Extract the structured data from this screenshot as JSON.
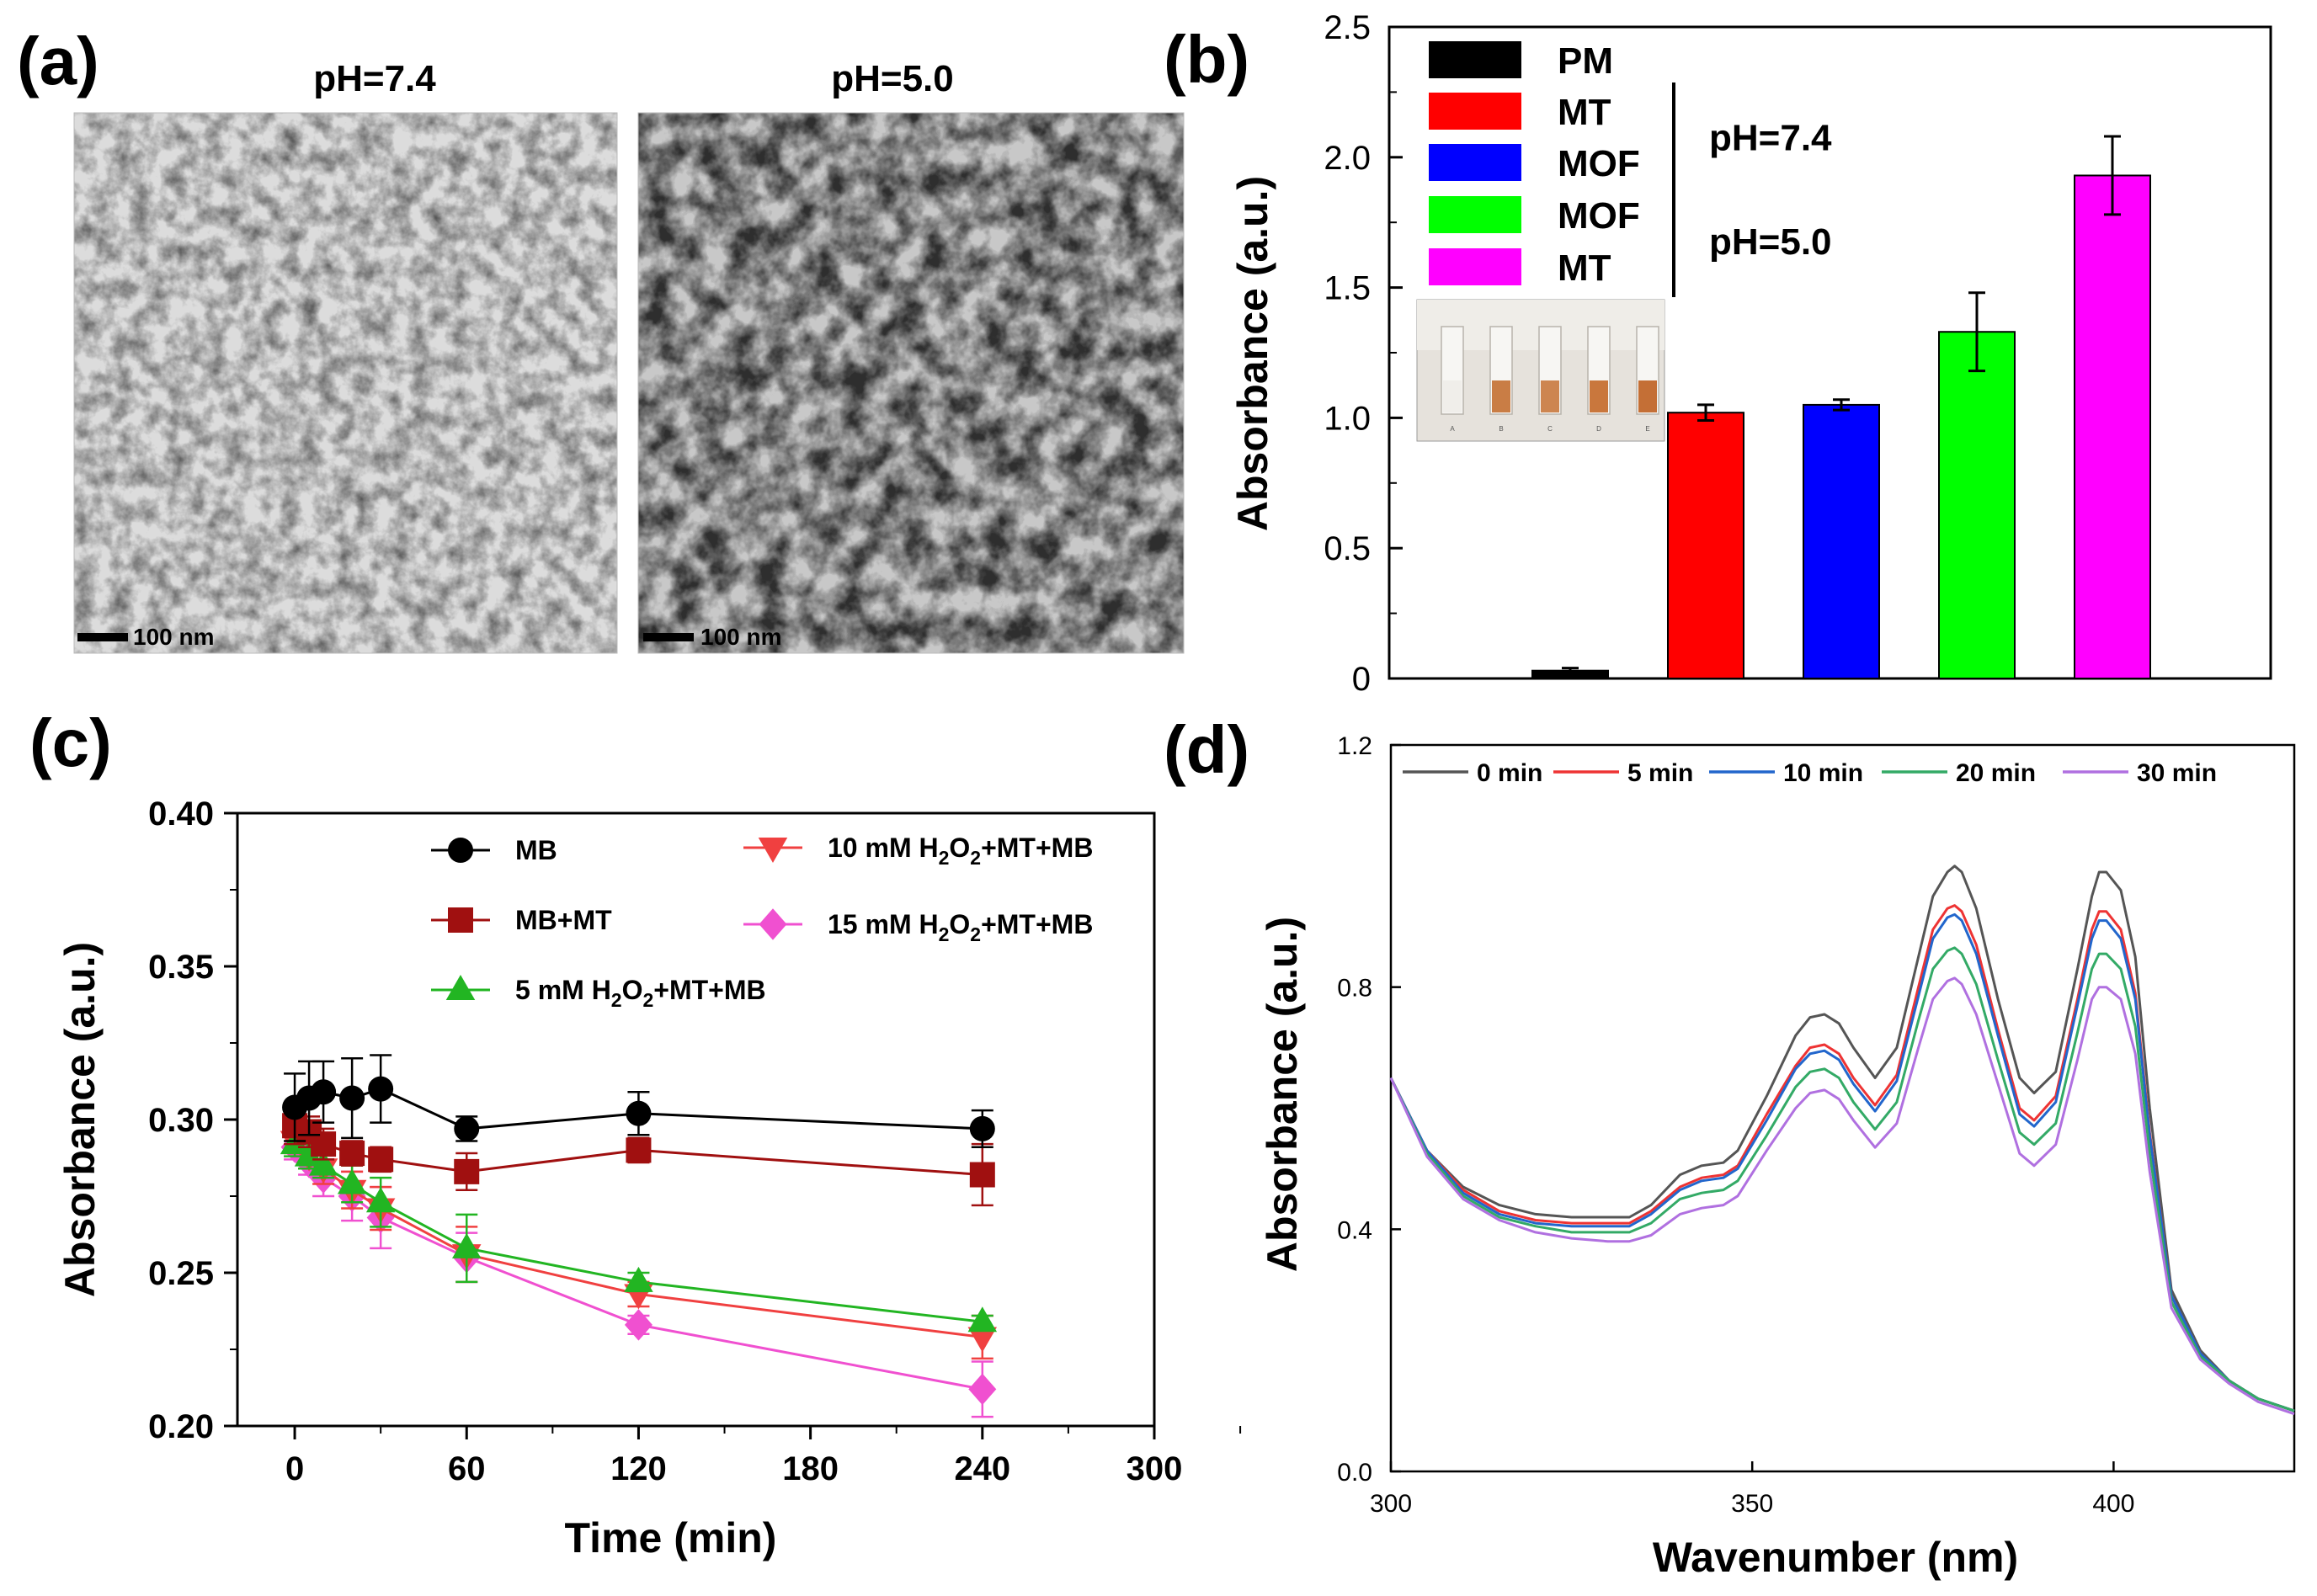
{
  "panels": {
    "a": {
      "label": "(a)",
      "images": [
        {
          "title": "pH=7.4",
          "scale_bar": "100 nm"
        },
        {
          "title": "pH=5.0",
          "scale_bar": "100 nm"
        }
      ]
    },
    "b": {
      "label": "(b)",
      "inset_letters": [
        "A",
        "B",
        "C",
        "D",
        "E"
      ]
    },
    "c": {
      "label": "(c)"
    },
    "d": {
      "label": "(d)"
    }
  },
  "chart_data": [
    {
      "id": "b",
      "type": "bar",
      "title": "",
      "xlabel": "",
      "ylabel": "Absorbance (a.u.)",
      "ylim": [
        0,
        2.5
      ],
      "yticks": [
        0,
        0.5,
        1.0,
        1.5,
        2.0,
        2.5
      ],
      "ytick_labels": [
        "0",
        "0.5",
        "1.0",
        "1.5",
        "2.0",
        "2.5"
      ],
      "categories": [
        "PM",
        "MT",
        "MOF",
        "MOF",
        "MT"
      ],
      "values": [
        0.03,
        1.02,
        1.05,
        1.33,
        1.93
      ],
      "errors": [
        0.01,
        0.03,
        0.02,
        0.15,
        0.15
      ],
      "colors": [
        "#000000",
        "#ff0000",
        "#0000ff",
        "#00ff00",
        "#ff00ff"
      ],
      "legend": [
        "PM",
        "MT",
        "MOF",
        "MOF",
        "MT"
      ],
      "legend_groups": [
        {
          "label": "pH=7.4",
          "members": [
            1,
            2
          ]
        },
        {
          "label": "pH=5.0",
          "members": [
            3,
            4
          ]
        }
      ]
    },
    {
      "id": "c",
      "type": "line",
      "title": "",
      "xlabel": "Time (min)",
      "ylabel": "Absorbance (a.u.)",
      "xlim": [
        -20,
        300
      ],
      "ylim": [
        0.2,
        0.4
      ],
      "xticks": [
        0,
        60,
        120,
        180,
        240,
        300
      ],
      "yticks": [
        0.2,
        0.25,
        0.3,
        0.35,
        0.4
      ],
      "ytick_labels": [
        "0.20",
        "0.25",
        "0.30",
        "0.35",
        "0.40"
      ],
      "series": [
        {
          "name": "MB",
          "legend_parts": [
            "MB"
          ],
          "color": "#000000",
          "marker": "circle",
          "x": [
            0,
            5,
            10,
            20,
            30,
            60,
            120,
            240
          ],
          "y": [
            0.304,
            0.307,
            0.309,
            0.307,
            0.31,
            0.297,
            0.302,
            0.297
          ],
          "err": [
            0.011,
            0.012,
            0.01,
            0.013,
            0.011,
            0.004,
            0.007,
            0.006
          ]
        },
        {
          "name": "MB+MT",
          "legend_parts": [
            "MB+MT"
          ],
          "color": "#a01010",
          "marker": "square",
          "x": [
            0,
            5,
            10,
            20,
            30,
            60,
            120,
            240
          ],
          "y": [
            0.298,
            0.296,
            0.292,
            0.289,
            0.287,
            0.283,
            0.29,
            0.282
          ],
          "err": [
            0.006,
            0.005,
            0.005,
            0.004,
            0.004,
            0.006,
            0.004,
            0.01
          ]
        },
        {
          "name": "5 mM H2O2+MT+MB",
          "legend_parts": [
            "5 mM H",
            "2",
            "O",
            "2",
            "+MT+MB"
          ],
          "color": "#22b522",
          "marker": "triangle-up",
          "x": [
            0,
            5,
            10,
            20,
            30,
            60,
            120,
            240
          ],
          "y": [
            0.292,
            0.288,
            0.285,
            0.279,
            0.273,
            0.258,
            0.247,
            0.234
          ],
          "err": [
            0.004,
            0.004,
            0.004,
            0.006,
            0.008,
            0.011,
            0.003,
            0.002
          ]
        },
        {
          "name": "10 mM H2O2+MT+MB",
          "legend_parts": [
            "10 mM H",
            "2",
            "O",
            "2",
            "+MT+MB"
          ],
          "color": "#f04040",
          "marker": "triangle-down",
          "x": [
            0,
            5,
            10,
            20,
            30,
            60,
            120,
            240
          ],
          "y": [
            0.293,
            0.288,
            0.284,
            0.277,
            0.271,
            0.256,
            0.243,
            0.229
          ],
          "err": [
            0.004,
            0.004,
            0.005,
            0.006,
            0.007,
            0.009,
            0.004,
            0.007
          ]
        },
        {
          "name": "15 mM H2O2+MT+MB",
          "legend_parts": [
            "15 mM H",
            "2",
            "O",
            "2",
            "+MT+MB"
          ],
          "color": "#f050d0",
          "marker": "diamond",
          "x": [
            0,
            5,
            10,
            20,
            30,
            60,
            120,
            240
          ],
          "y": [
            0.291,
            0.286,
            0.281,
            0.275,
            0.268,
            0.255,
            0.233,
            0.212
          ],
          "err": [
            0.004,
            0.004,
            0.006,
            0.008,
            0.01,
            0.008,
            0.003,
            0.009
          ]
        }
      ]
    },
    {
      "id": "d",
      "type": "line",
      "title": "",
      "xlabel": "Wavenumber (nm)",
      "ylabel": "Absorbance (a.u.)",
      "xlim": [
        300,
        425
      ],
      "ylim": [
        0.0,
        1.2
      ],
      "xticks": [
        300,
        350,
        400
      ],
      "yticks": [
        0.0,
        0.4,
        0.8,
        1.2
      ],
      "ytick_labels": [
        "0.0",
        "0.4",
        "0.8",
        "1.2"
      ],
      "x": [
        300,
        305,
        310,
        315,
        320,
        325,
        330,
        333,
        336,
        340,
        343,
        346,
        348,
        352,
        356,
        358,
        360,
        362,
        364,
        367,
        370,
        373,
        375,
        377,
        378,
        379,
        381,
        384,
        387,
        389,
        392,
        395,
        397,
        398,
        399,
        401,
        403,
        405,
        408,
        412,
        416,
        420,
        425
      ],
      "series": [
        {
          "name": "0 min",
          "color": "#555555",
          "y": [
            0.65,
            0.53,
            0.47,
            0.44,
            0.425,
            0.42,
            0.42,
            0.42,
            0.44,
            0.49,
            0.505,
            0.51,
            0.53,
            0.62,
            0.72,
            0.75,
            0.755,
            0.74,
            0.7,
            0.65,
            0.7,
            0.85,
            0.95,
            0.99,
            1.0,
            0.99,
            0.93,
            0.78,
            0.65,
            0.625,
            0.66,
            0.83,
            0.95,
            0.99,
            0.99,
            0.96,
            0.85,
            0.6,
            0.3,
            0.2,
            0.15,
            0.12,
            0.1
          ]
        },
        {
          "name": "5 min",
          "color": "#ee3333",
          "y": [
            0.65,
            0.53,
            0.465,
            0.43,
            0.415,
            0.41,
            0.41,
            0.41,
            0.43,
            0.47,
            0.485,
            0.49,
            0.505,
            0.59,
            0.67,
            0.7,
            0.705,
            0.69,
            0.65,
            0.605,
            0.655,
            0.8,
            0.895,
            0.93,
            0.935,
            0.925,
            0.87,
            0.73,
            0.6,
            0.58,
            0.62,
            0.78,
            0.895,
            0.925,
            0.925,
            0.895,
            0.79,
            0.56,
            0.29,
            0.195,
            0.15,
            0.12,
            0.1
          ]
        },
        {
          "name": "10 min",
          "color": "#2266cc",
          "y": [
            0.65,
            0.53,
            0.46,
            0.425,
            0.41,
            0.405,
            0.405,
            0.405,
            0.425,
            0.465,
            0.48,
            0.485,
            0.5,
            0.58,
            0.665,
            0.69,
            0.695,
            0.68,
            0.64,
            0.595,
            0.645,
            0.785,
            0.88,
            0.915,
            0.92,
            0.91,
            0.855,
            0.72,
            0.59,
            0.57,
            0.61,
            0.77,
            0.88,
            0.91,
            0.91,
            0.88,
            0.78,
            0.555,
            0.29,
            0.195,
            0.15,
            0.12,
            0.1
          ]
        },
        {
          "name": "20 min",
          "color": "#33aa66",
          "y": [
            0.65,
            0.525,
            0.455,
            0.42,
            0.405,
            0.395,
            0.395,
            0.395,
            0.41,
            0.45,
            0.46,
            0.465,
            0.48,
            0.555,
            0.635,
            0.66,
            0.665,
            0.65,
            0.61,
            0.565,
            0.61,
            0.745,
            0.83,
            0.86,
            0.865,
            0.855,
            0.805,
            0.68,
            0.56,
            0.54,
            0.575,
            0.725,
            0.83,
            0.855,
            0.855,
            0.83,
            0.735,
            0.525,
            0.28,
            0.19,
            0.15,
            0.12,
            0.1
          ]
        },
        {
          "name": "30 min",
          "color": "#b070e0",
          "y": [
            0.65,
            0.52,
            0.45,
            0.415,
            0.395,
            0.385,
            0.38,
            0.38,
            0.39,
            0.425,
            0.435,
            0.44,
            0.455,
            0.53,
            0.6,
            0.625,
            0.63,
            0.615,
            0.58,
            0.535,
            0.575,
            0.7,
            0.78,
            0.81,
            0.815,
            0.805,
            0.755,
            0.64,
            0.525,
            0.505,
            0.54,
            0.68,
            0.78,
            0.8,
            0.8,
            0.78,
            0.69,
            0.495,
            0.27,
            0.185,
            0.145,
            0.115,
            0.095
          ]
        }
      ]
    }
  ]
}
